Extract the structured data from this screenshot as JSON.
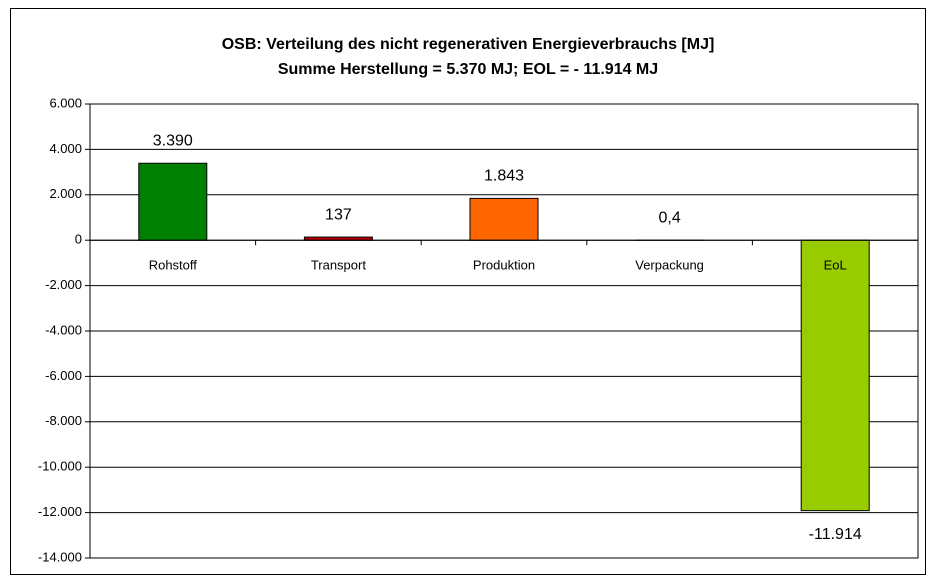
{
  "chart_data": {
    "type": "bar",
    "title": "OSB: Verteilung des nicht regenerativen Energieverbrauchs [MJ]",
    "subtitle": "Summe Herstellung = 5.370  MJ; EOL = - 11.914  MJ",
    "categories": [
      "Rohstoff",
      "Transport",
      "Produktion",
      "Verpackung",
      "EoL"
    ],
    "values": [
      3390,
      137,
      1843,
      0.4,
      -11914
    ],
    "value_labels": [
      "3.390",
      "137",
      "1.843",
      "0,4",
      "-11.914"
    ],
    "colors": [
      "#008000",
      "#c00000",
      "#ff6600",
      "#3366ff",
      "#99cc00"
    ],
    "ylim": [
      -14000,
      6000
    ],
    "yticks": [
      {
        "value": 6000,
        "label": "6.000"
      },
      {
        "value": 4000,
        "label": "4.000"
      },
      {
        "value": 2000,
        "label": "2.000"
      },
      0,
      {
        "value": -2000,
        "label": "-2.000"
      },
      {
        "value": -4000,
        "label": "-4.000"
      },
      {
        "value": -6000,
        "label": "-6.000"
      },
      {
        "value": -8000,
        "label": "-8.000"
      },
      {
        "value": -10000,
        "label": "-10.000"
      },
      {
        "value": -12000,
        "label": "-12.000"
      },
      {
        "value": -14000,
        "label": "-14.000"
      }
    ],
    "grid": true
  }
}
